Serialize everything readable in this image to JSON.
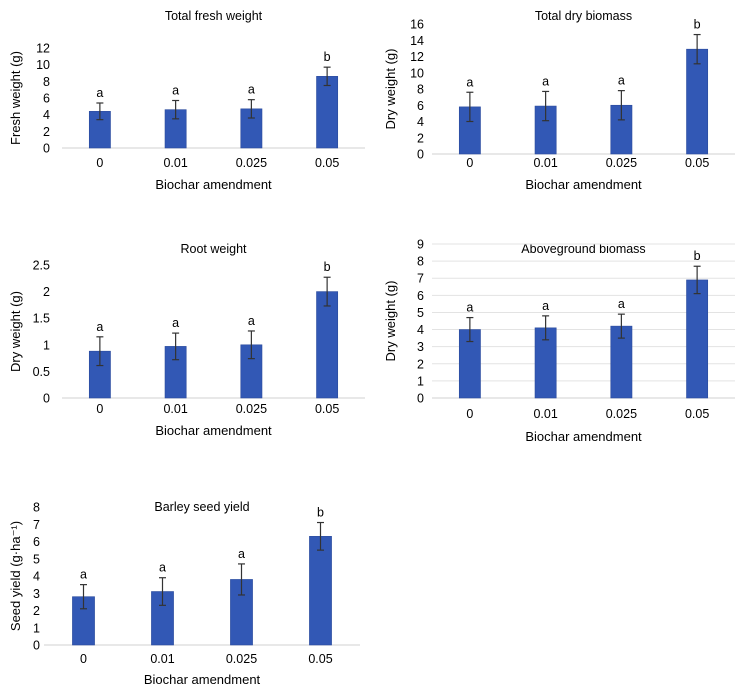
{
  "chart_data": [
    {
      "id": "fresh",
      "type": "bar",
      "title": "Total fresh weight",
      "xlabel": "Biochar amendment",
      "ylabel": "Fresh weight (g)",
      "categories": [
        "0",
        "0.01",
        "0.025",
        "0.05"
      ],
      "values": [
        4.4,
        4.6,
        4.7,
        8.6
      ],
      "errors": [
        1.0,
        1.1,
        1.1,
        1.1
      ],
      "letters": [
        "a",
        "a",
        "a",
        "b"
      ],
      "ylim": [
        0,
        12
      ],
      "ytick_labels": [
        "0",
        "2",
        "4",
        "6",
        "8",
        "10",
        "12"
      ],
      "grid": false,
      "bar_color": "#3258b5",
      "error_color": "#333333"
    },
    {
      "id": "dry",
      "type": "bar",
      "title": "Total dry biomass",
      "xlabel": "Biochar amendment",
      "ylabel": "Dry weight (g)",
      "categories": [
        "0",
        "0.01",
        "0.025",
        "0.05"
      ],
      "values": [
        5.8,
        5.9,
        6.0,
        12.9
      ],
      "errors": [
        1.8,
        1.8,
        1.8,
        1.8
      ],
      "letters": [
        "a",
        "a",
        "a",
        "b"
      ],
      "ylim": [
        0,
        16
      ],
      "ytick_labels": [
        "0",
        "2",
        "4",
        "6",
        "8",
        "10",
        "12",
        "14",
        "16"
      ],
      "grid": false,
      "bar_color": "#3258b5",
      "error_color": "#333333"
    },
    {
      "id": "root",
      "type": "bar",
      "title": "Root weight",
      "xlabel": "Biochar amendment",
      "ylabel": "Dry weight (g)",
      "categories": [
        "0",
        "0.01",
        "0.025",
        "0.05"
      ],
      "values": [
        0.88,
        0.97,
        1.0,
        2.0
      ],
      "errors": [
        0.27,
        0.25,
        0.26,
        0.27
      ],
      "letters": [
        "a",
        "a",
        "a",
        "b"
      ],
      "ylim": [
        0,
        2.5
      ],
      "ytick_labels": [
        "0",
        "0.5",
        "1",
        "1.5",
        "2",
        "2.5"
      ],
      "grid": false,
      "bar_color": "#3258b5",
      "error_color": "#333333"
    },
    {
      "id": "above",
      "type": "bar",
      "title": "Aboveground biomass",
      "xlabel": "Biochar amendment",
      "ylabel": "Dry weight (g)",
      "categories": [
        "0",
        "0.01",
        "0.025",
        "0.05"
      ],
      "values": [
        4.0,
        4.1,
        4.2,
        6.9
      ],
      "errors": [
        0.7,
        0.7,
        0.7,
        0.8
      ],
      "letters": [
        "a",
        "a",
        "a",
        "b"
      ],
      "ylim": [
        0,
        9
      ],
      "ytick_labels": [
        "0",
        "1",
        "2",
        "3",
        "4",
        "5",
        "6",
        "7",
        "8",
        "9"
      ],
      "grid": true,
      "bar_color": "#3258b5",
      "error_color": "#333333"
    },
    {
      "id": "seed",
      "type": "bar",
      "title": "Barley seed yield",
      "xlabel": "Biochar amendment",
      "ylabel": "Seed yield (g·ha⁻¹)",
      "categories": [
        "0",
        "0.01",
        "0.025",
        "0.05"
      ],
      "values": [
        2.8,
        3.1,
        3.8,
        6.3
      ],
      "errors": [
        0.7,
        0.8,
        0.9,
        0.8
      ],
      "letters": [
        "a",
        "a",
        "a",
        "b"
      ],
      "ylim": [
        0,
        8
      ],
      "ytick_labels": [
        "0",
        "1",
        "2",
        "3",
        "4",
        "5",
        "6",
        "7",
        "8"
      ],
      "grid": false,
      "bar_color": "#3258b5",
      "error_color": "#333333"
    }
  ]
}
